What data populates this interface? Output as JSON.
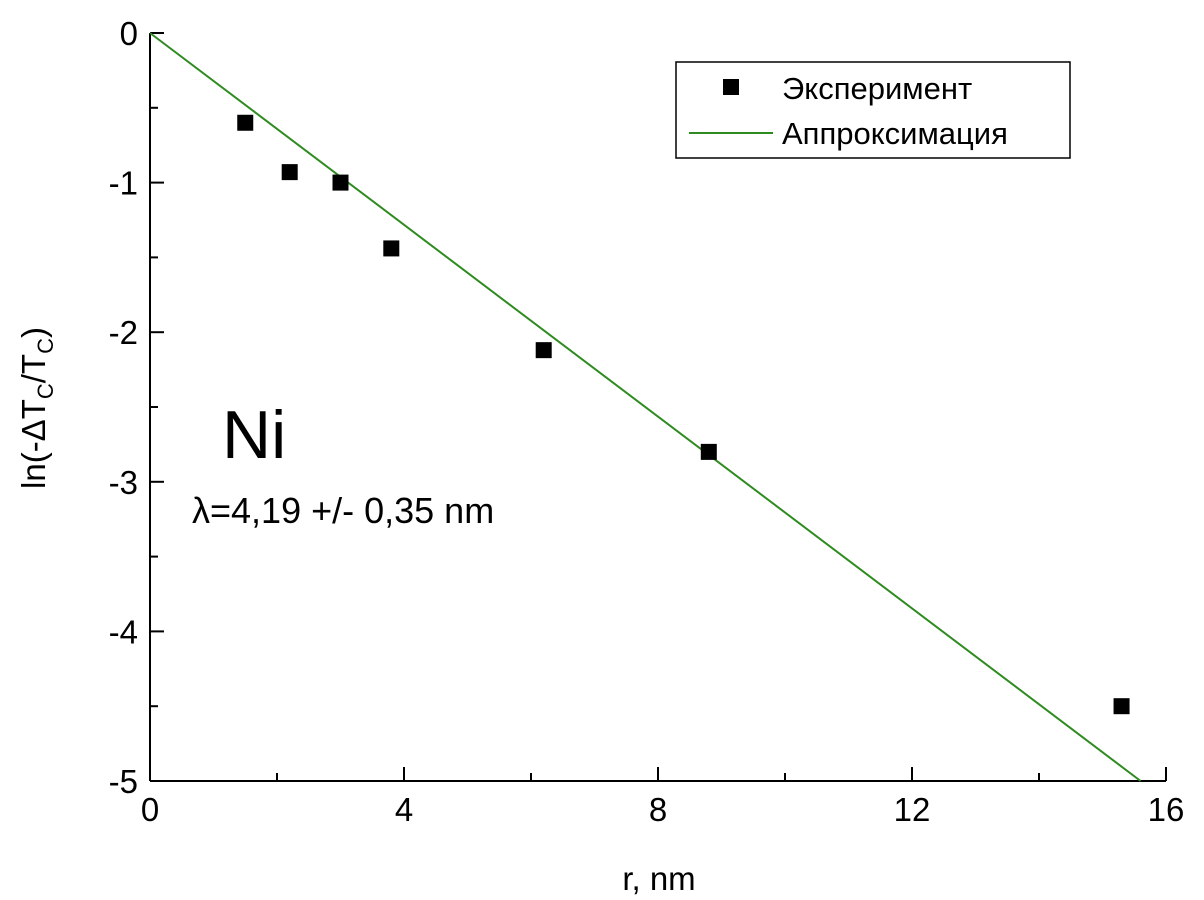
{
  "chart_data": {
    "type": "scatter",
    "title": "",
    "xlabel": "r, nm",
    "ylabel": {
      "prefix": "ln(-ΔT",
      "sub1": "C",
      "mid": "/T",
      "sub2": "C",
      "suffix": ")"
    },
    "xlim": [
      0,
      16
    ],
    "ylim": [
      -5,
      0
    ],
    "x_ticks": [
      0,
      4,
      8,
      12,
      16
    ],
    "y_ticks": [
      0,
      -1,
      -2,
      -3,
      -4,
      -5
    ],
    "x_ticks_labels": [
      "0",
      "4",
      "8",
      "12",
      "16"
    ],
    "y_ticks_labels": [
      "0",
      "-1",
      "-2",
      "-3",
      "-4",
      "-5"
    ],
    "grid": false,
    "legend_position": "top-right",
    "series": [
      {
        "name": "Эксперимент",
        "kind": "scatter",
        "marker": "square",
        "color": "#000000",
        "x": [
          1.5,
          2.2,
          3.0,
          3.8,
          6.2,
          8.8,
          15.3
        ],
        "y": [
          -0.6,
          -0.93,
          -1.0,
          -1.44,
          -2.12,
          -2.8,
          -4.5
        ]
      },
      {
        "name": "Аппроксимация",
        "kind": "line",
        "color": "#2e8b1f",
        "x": [
          0,
          15.6
        ],
        "y": [
          0,
          -5.0
        ]
      }
    ],
    "annotations": {
      "element": "Ni",
      "lambda_text": "λ=4,19 +/- 0,35 nm"
    }
  }
}
